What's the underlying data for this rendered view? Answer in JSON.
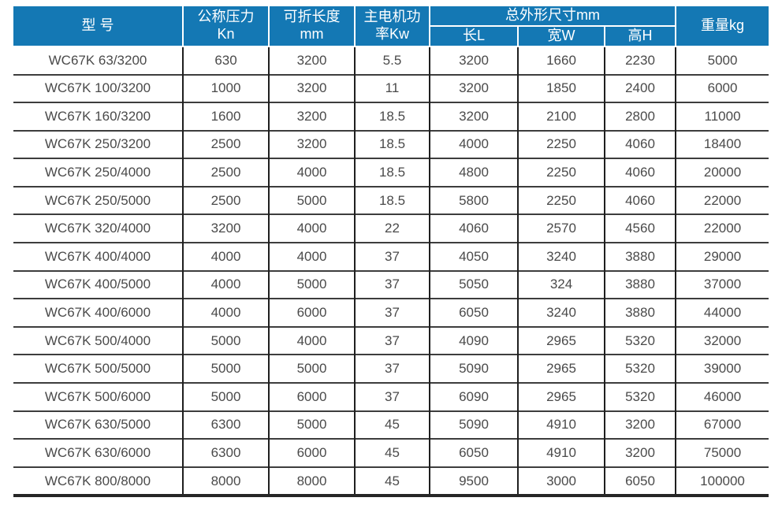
{
  "colors": {
    "header_bg": "#1478b4",
    "header_text": "#ffffff",
    "body_text": "#4a4a4a",
    "grid_line_h": "#3d3d3d",
    "grid_line_v": "#1f1f1f",
    "bottom_rule": "#262626",
    "page_bg": "#ffffff"
  },
  "table": {
    "headers": {
      "model": "型 号",
      "pressure": "公称压力\nKn",
      "fold_length": "可折长度\nmm",
      "motor_power": "主电机功\n率Kw",
      "dimensions": "总外形尺寸mm",
      "dim_l": "长L",
      "dim_w": "宽W",
      "dim_h": "高H",
      "weight": "重量kg"
    },
    "rows": [
      [
        "WC67K 63/3200",
        "630",
        "3200",
        "5.5",
        "3200",
        "1660",
        "2230",
        "5000"
      ],
      [
        "WC67K 100/3200",
        "1000",
        "3200",
        "11",
        "3200",
        "1850",
        "2400",
        "6000"
      ],
      [
        "WC67K 160/3200",
        "1600",
        "3200",
        "18.5",
        "3200",
        "2100",
        "2800",
        "11000"
      ],
      [
        "WC67K 250/3200",
        "2500",
        "3200",
        "18.5",
        "4000",
        "2250",
        "4060",
        "18400"
      ],
      [
        "WC67K 250/4000",
        "2500",
        "4000",
        "18.5",
        "4800",
        "2250",
        "4060",
        "20000"
      ],
      [
        "WC67K 250/5000",
        "2500",
        "5000",
        "18.5",
        "5800",
        "2250",
        "4060",
        "22000"
      ],
      [
        "WC67K 320/4000",
        "3200",
        "4000",
        "22",
        "4060",
        "2570",
        "4560",
        "22000"
      ],
      [
        "WC67K 400/4000",
        "4000",
        "4000",
        "37",
        "4050",
        "3240",
        "3880",
        "29000"
      ],
      [
        "WC67K 400/5000",
        "4000",
        "5000",
        "37",
        "5050",
        "324",
        "3880",
        "37000"
      ],
      [
        "WC67K 400/6000",
        "4000",
        "6000",
        "37",
        "6050",
        "3240",
        "3880",
        "44000"
      ],
      [
        "WC67K 500/4000",
        "5000",
        "4000",
        "37",
        "4090",
        "2965",
        "5320",
        "32000"
      ],
      [
        "WC67K 500/5000",
        "5000",
        "5000",
        "37",
        "5090",
        "2965",
        "5320",
        "39000"
      ],
      [
        "WC67K 500/6000",
        "5000",
        "6000",
        "37",
        "6090",
        "2965",
        "5320",
        "46000"
      ],
      [
        "WC67K 630/5000",
        "6300",
        "5000",
        "45",
        "5090",
        "4910",
        "3200",
        "67000"
      ],
      [
        "WC67K 630/6000",
        "6300",
        "6000",
        "45",
        "6050",
        "4910",
        "3200",
        "75000"
      ],
      [
        "WC67K 800/8000",
        "8000",
        "8000",
        "45",
        "9500",
        "3000",
        "6050",
        "100000"
      ]
    ]
  }
}
